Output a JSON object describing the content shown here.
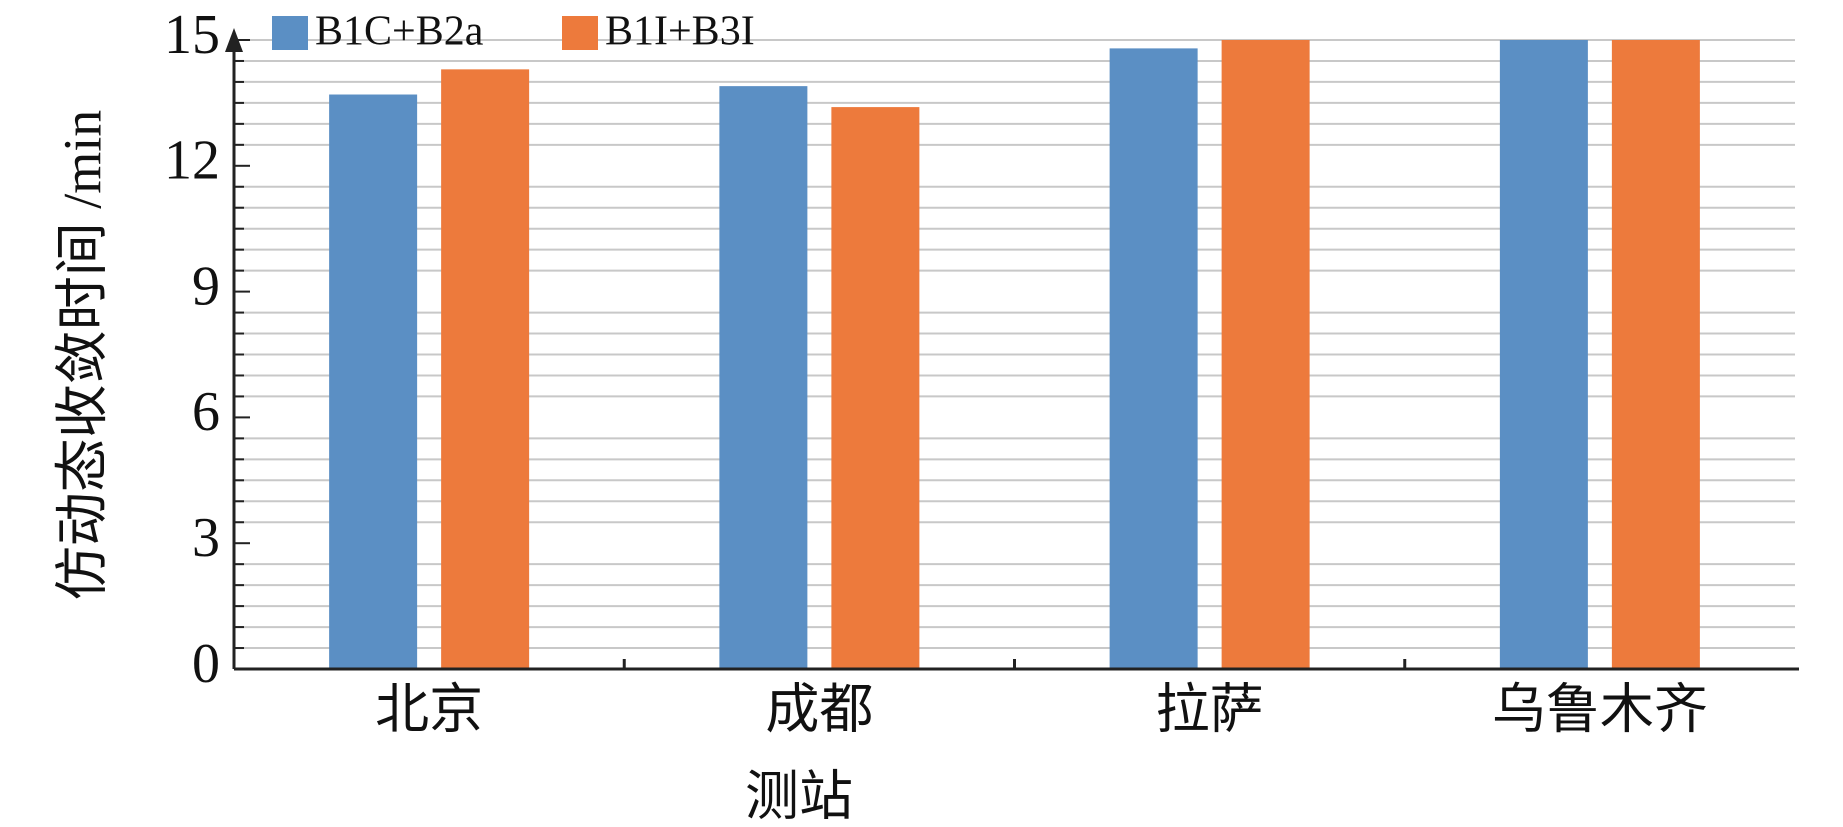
{
  "chart_data": {
    "type": "bar",
    "xlabel": "测站",
    "ylabel": "仿动态收敛时间 /min",
    "categories": [
      "北京",
      "成都",
      "拉萨",
      "乌鲁木齐"
    ],
    "series": [
      {
        "name": "B1C+B2a",
        "color": "#5b8fc4",
        "values": [
          13.7,
          13.9,
          14.8,
          15
        ]
      },
      {
        "name": "B1I+B3I",
        "color": "#ed7a3c",
        "values": [
          14.3,
          13.4,
          15,
          15
        ]
      }
    ],
    "ylim": [
      0,
      15
    ],
    "yticks": [
      0,
      3,
      6,
      9,
      12,
      15
    ],
    "minor_yticks": [
      0.5,
      1,
      1.5,
      2,
      2.5,
      3.5,
      4,
      4.5,
      5,
      5.5,
      6.5,
      7,
      7.5,
      8,
      8.5,
      9.5,
      10,
      10.5,
      11,
      11.5,
      12.5,
      13,
      13.5,
      14,
      14.5,
      15
    ],
    "grid": true,
    "legend": "top-left"
  }
}
